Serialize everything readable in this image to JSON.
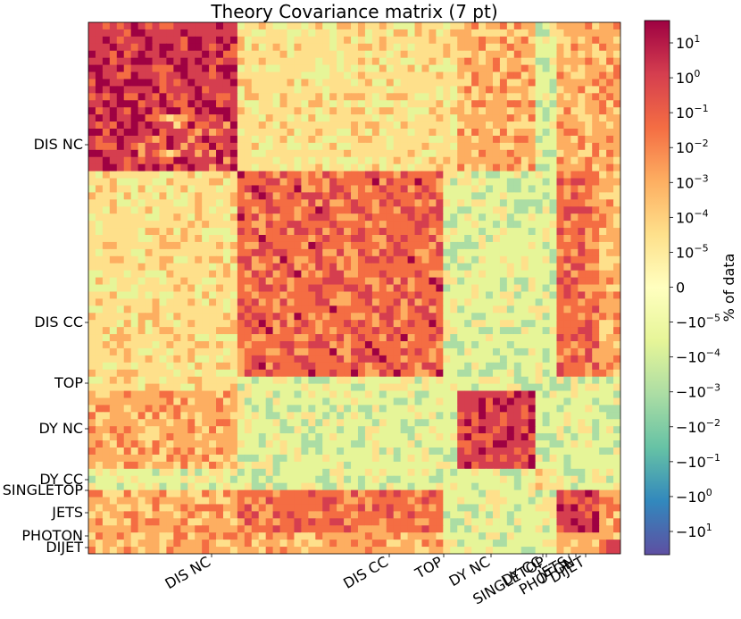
{
  "chart_data": {
    "type": "heatmap",
    "title": "Theory Covariance matrix (7 pt)",
    "colorbar_label": "% of data",
    "colorbar_ticks": [
      {
        "base": "10",
        "exp": "1"
      },
      {
        "base": "10",
        "exp": "0"
      },
      {
        "base": "10",
        "exp": "−1"
      },
      {
        "base": "10",
        "exp": "−2"
      },
      {
        "base": "10",
        "exp": "−3"
      },
      {
        "base": "10",
        "exp": "−4"
      },
      {
        "base": "10",
        "exp": "−5"
      },
      {
        "base": "0",
        "exp": ""
      },
      {
        "base": "−10",
        "exp": "−5"
      },
      {
        "base": "−10",
        "exp": "−4"
      },
      {
        "base": "−10",
        "exp": "−3"
      },
      {
        "base": "−10",
        "exp": "−2"
      },
      {
        "base": "−10",
        "exp": "−1"
      },
      {
        "base": "−10",
        "exp": "0"
      },
      {
        "base": "−10",
        "exp": "1"
      }
    ],
    "processes": [
      {
        "label": "DIS NC",
        "start": 0.0,
        "end": 0.285
      },
      {
        "label": "DIS CC",
        "start": 0.285,
        "end": 0.67
      },
      {
        "label": "TOP",
        "start": 0.67,
        "end": 0.688
      },
      {
        "label": "DY NC",
        "start": 0.688,
        "end": 0.835
      },
      {
        "label": "DY CC",
        "start": 0.835,
        "end": 0.878
      },
      {
        "label": "SINGLETOP",
        "start": 0.878,
        "end": 0.885
      },
      {
        "label": "JETS",
        "start": 0.885,
        "end": 0.965
      },
      {
        "label": "PHOTON",
        "start": 0.965,
        "end": 0.97
      },
      {
        "label": "DIJET",
        "start": 0.97,
        "end": 1.0
      }
    ],
    "colormap": "Spectral_r",
    "grid": false
  }
}
